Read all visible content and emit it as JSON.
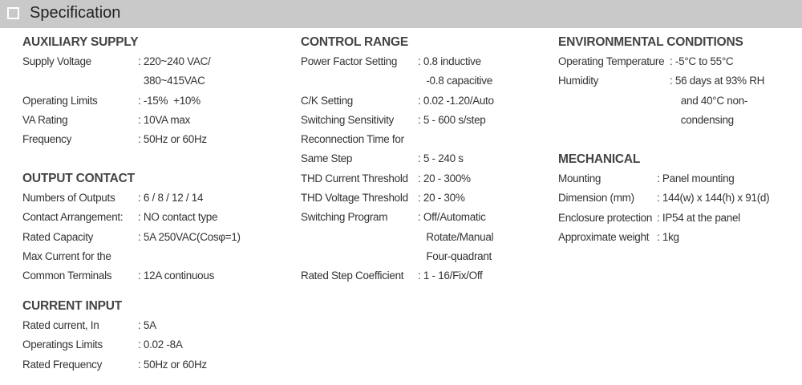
{
  "header": {
    "title": "Specification"
  },
  "sections": [
    {
      "id": "s-aux",
      "heading": "AUXILIARY SUPPLY",
      "rows": [
        {
          "label": "Supply Voltage",
          "value": ": 220~240 VAC/"
        },
        {
          "label": "",
          "value": "  380~415VAC"
        },
        {
          "label": "Operating Limits",
          "value": ": -15%  +10%"
        },
        {
          "label": "VA Rating",
          "value": ": 10VA max"
        },
        {
          "label": "Frequency",
          "value": ": 50Hz or 60Hz"
        }
      ]
    },
    {
      "id": "s-out",
      "heading": "OUTPUT CONTACT",
      "rows": [
        {
          "label": "Numbers of Outputs",
          "value": ": 6 / 8 / 12 / 14"
        },
        {
          "label": "Contact Arrangement:",
          "value": ": NO contact type"
        },
        {
          "label": "Rated Capacity",
          "value": ": 5A 250VAC(Cosφ=1)"
        },
        {
          "label": "Max Current for the",
          "value": ""
        },
        {
          "label": "Common Terminals",
          "value": ": 12A continuous"
        }
      ]
    },
    {
      "id": "s-cur",
      "heading": "CURRENT INPUT",
      "rows": [
        {
          "label": "Rated current, In",
          "value": ": 5A"
        },
        {
          "label": "Operatings Limits",
          "value": ": 0.02 -8A"
        },
        {
          "label": "Rated Frequency",
          "value": ": 50Hz or 60Hz"
        }
      ]
    },
    {
      "id": "s-ctl",
      "heading": "CONTROL RANGE",
      "rows": [
        {
          "label": "Power Factor Setting",
          "value": ": 0.8 inductive"
        },
        {
          "label": "",
          "value": "   -0.8 capacitive"
        },
        {
          "label": "C/K Setting",
          "value": ": 0.02 -1.20/Auto"
        },
        {
          "label": "Switching Sensitivity",
          "value": ": 5 - 600 s/step"
        },
        {
          "label": "Reconnection Time for",
          "value": ""
        },
        {
          "label": "Same Step",
          "value": ": 5 - 240 s"
        },
        {
          "label": "THD Current Threshold",
          "value": ": 20 - 300%"
        },
        {
          "label": "THD Voltage Threshold",
          "value": ": 20 - 30%"
        },
        {
          "label": "Switching Program",
          "value": ": Off/Automatic"
        },
        {
          "label": "",
          "value": "   Rotate/Manual"
        },
        {
          "label": "",
          "value": "   Four-quadrant"
        },
        {
          "label": "Rated Step Coefficient",
          "value": ": 1 - 16/Fix/Off"
        }
      ]
    },
    {
      "id": "s-env",
      "heading": "ENVIRONMENTAL CONDITIONS",
      "rows": [
        {
          "label": "Operating Temperature",
          "value": ": -5°C to 55°C"
        },
        {
          "label": "Humidity",
          "value": ": 56 days at 93% RH"
        },
        {
          "label": "",
          "value": "    and 40°C non-"
        },
        {
          "label": "",
          "value": "    condensing"
        }
      ]
    },
    {
      "id": "s-mech",
      "heading": "MECHANICAL",
      "rows": [
        {
          "label": "Mounting",
          "value": ": Panel mounting"
        },
        {
          "label": "Dimension (mm)",
          "value": ": 144(w) x 144(h) x 91(d)"
        },
        {
          "label": "Enclosure protection",
          "value": ": IP54 at the panel"
        },
        {
          "label": "Approximate weight",
          "value": ": 1kg"
        }
      ]
    }
  ]
}
